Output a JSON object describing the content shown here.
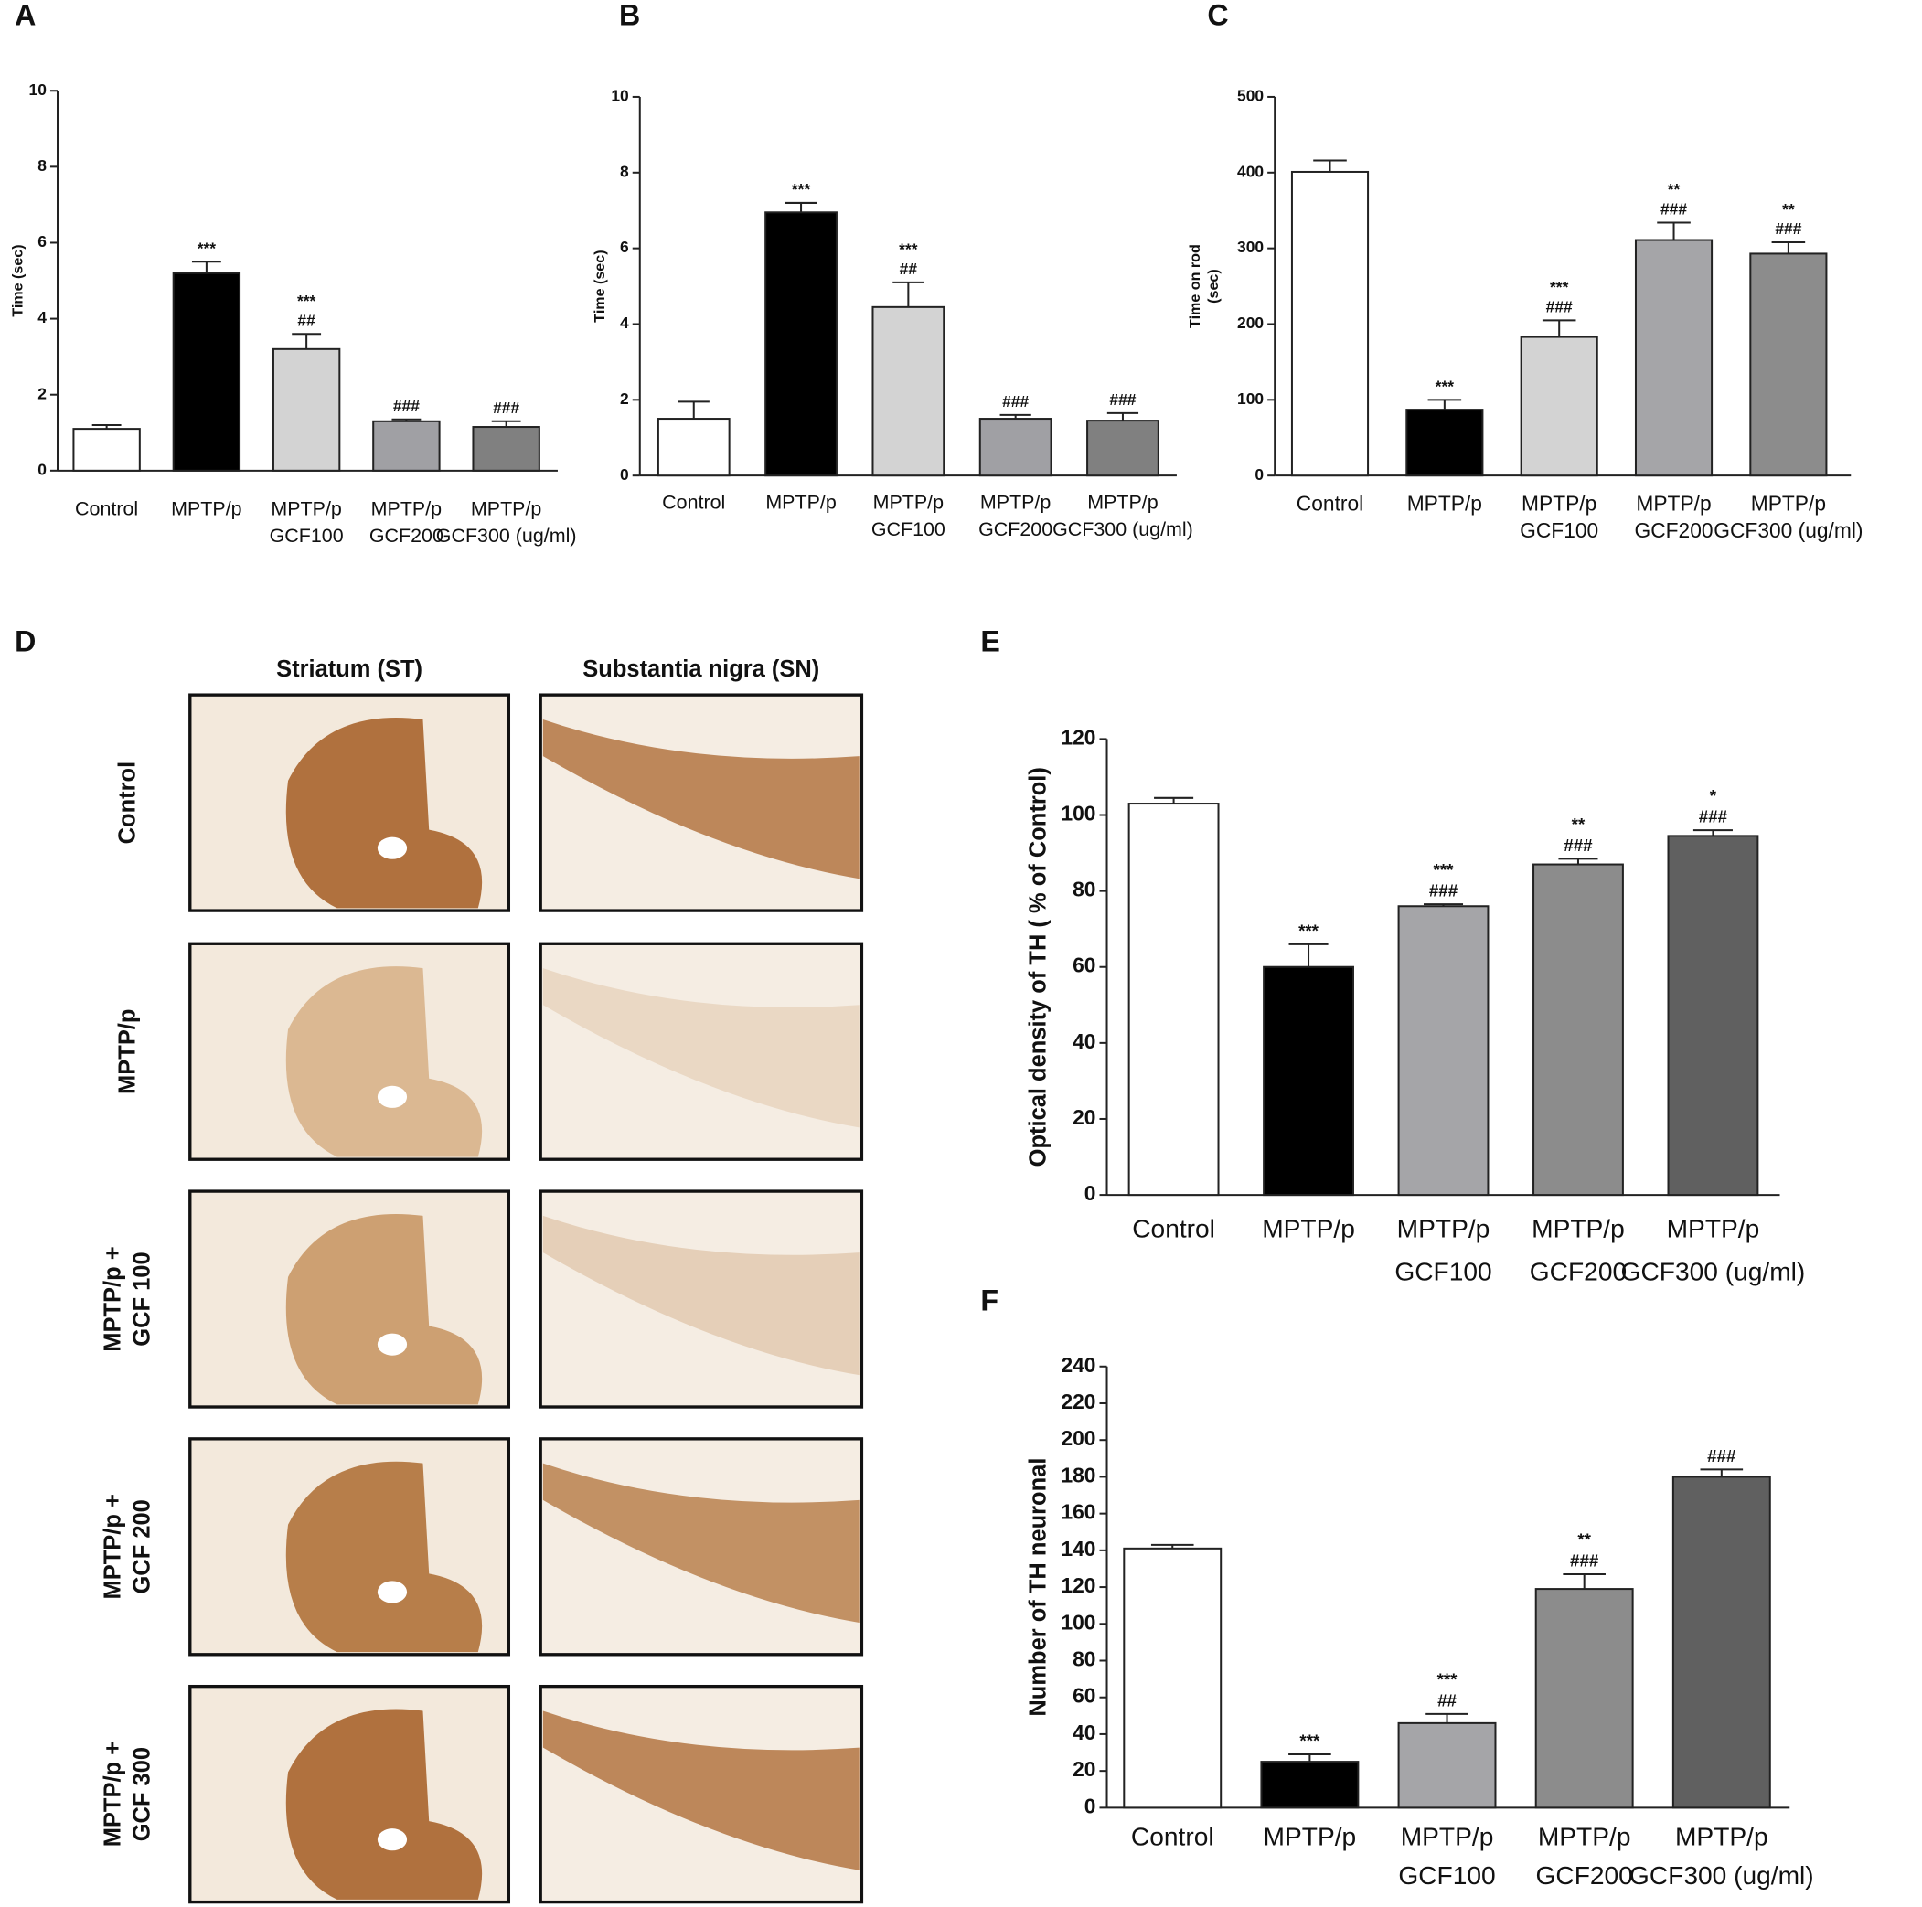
{
  "chart_data": [
    {
      "type": "bar",
      "label": "A",
      "ylabel": [
        "Time (sec)"
      ],
      "categories": [
        [
          "Control"
        ],
        [
          "MPTP/p"
        ],
        [
          "MPTP/p",
          "GCF100"
        ],
        [
          "MPTP/p",
          "GCF200"
        ],
        [
          "MPTP/p",
          "GCF300 (ug/ml)"
        ]
      ],
      "values": [
        1.1,
        5.2,
        3.2,
        1.3,
        1.15
      ],
      "errors": [
        0.1,
        0.3,
        0.4,
        0.05,
        0.15
      ],
      "colors": [
        "#ffffff",
        "#000000",
        "#d3d3d3",
        "#a0a0a4",
        "#808080"
      ],
      "annotations": [
        [],
        [
          "***"
        ],
        [
          "***",
          "##"
        ],
        [
          "###"
        ],
        [
          "###"
        ]
      ],
      "ylim": [
        0,
        10
      ],
      "yticks": [
        0,
        2,
        4,
        6,
        8,
        10
      ]
    },
    {
      "type": "bar",
      "label": "B",
      "ylabel": [
        "Time (sec)"
      ],
      "categories": [
        [
          "Control"
        ],
        [
          "MPTP/p"
        ],
        [
          "MPTP/p",
          "GCF100"
        ],
        [
          "MPTP/p",
          "GCF200"
        ],
        [
          "MPTP/p",
          "GCF300 (ug/ml)"
        ]
      ],
      "values": [
        1.5,
        6.95,
        4.45,
        1.5,
        1.45
      ],
      "errors": [
        0.45,
        0.25,
        0.65,
        0.1,
        0.2
      ],
      "colors": [
        "#ffffff",
        "#000000",
        "#d3d3d3",
        "#a0a0a4",
        "#808080"
      ],
      "annotations": [
        [],
        [
          "***"
        ],
        [
          "***",
          "##"
        ],
        [
          "###"
        ],
        [
          "###"
        ]
      ],
      "ylim": [
        0,
        10
      ],
      "yticks": [
        0,
        2,
        4,
        6,
        8,
        10
      ]
    },
    {
      "type": "bar",
      "label": "C",
      "ylabel": [
        "Time on rod",
        "(sec)"
      ],
      "categories": [
        [
          "Control"
        ],
        [
          "MPTP/p"
        ],
        [
          "MPTP/p",
          "GCF100"
        ],
        [
          "MPTP/p",
          "GCF200"
        ],
        [
          "MPTP/p",
          "GCF300 (ug/ml)"
        ]
      ],
      "values": [
        401,
        87,
        183,
        311,
        293
      ],
      "errors": [
        15,
        13,
        22,
        23,
        15
      ],
      "colors": [
        "#ffffff",
        "#000000",
        "#d3d3d3",
        "#a5a5a8",
        "#8c8c8c"
      ],
      "annotations": [
        [],
        [
          "***"
        ],
        [
          "***",
          "###"
        ],
        [
          "**",
          "###"
        ],
        [
          "**",
          "###"
        ]
      ],
      "ylim": [
        0,
        500
      ],
      "yticks": [
        0,
        100,
        200,
        300,
        400,
        500
      ]
    },
    {
      "type": "bar",
      "label": "E",
      "ylabel": [
        "Optical density of TH  ( % of Control)"
      ],
      "categories": [
        [
          "Control"
        ],
        [
          "MPTP/p"
        ],
        [
          "MPTP/p",
          "GCF100"
        ],
        [
          "MPTP/p",
          "GCF200"
        ],
        [
          "MPTP/p",
          "GCF300 (ug/ml)"
        ]
      ],
      "values": [
        103,
        60,
        76,
        87,
        94.5
      ],
      "errors": [
        1.5,
        6,
        0.5,
        1.5,
        1.5
      ],
      "colors": [
        "#ffffff",
        "#000000",
        "#a5a5a8",
        "#8c8c8c",
        "#606060"
      ],
      "annotations": [
        [],
        [
          "***"
        ],
        [
          "***",
          "###"
        ],
        [
          "**",
          "###"
        ],
        [
          "*",
          "###"
        ]
      ],
      "ylim": [
        0,
        120
      ],
      "yticks": [
        0,
        20,
        40,
        60,
        80,
        100,
        120
      ]
    },
    {
      "type": "bar",
      "label": "F",
      "ylabel": [
        "Number of TH neuronal"
      ],
      "categories": [
        [
          "Control"
        ],
        [
          "MPTP/p"
        ],
        [
          "MPTP/p",
          "GCF100"
        ],
        [
          "MPTP/p",
          "GCF200"
        ],
        [
          "MPTP/p",
          "GCF300 (ug/ml)"
        ]
      ],
      "values": [
        141,
        25,
        46,
        119,
        180
      ],
      "errors": [
        2,
        4,
        5,
        8,
        4
      ],
      "colors": [
        "#ffffff",
        "#000000",
        "#a5a5a8",
        "#8c8c8c",
        "#606060"
      ],
      "annotations": [
        [],
        [
          "***"
        ],
        [
          "***",
          "##"
        ],
        [
          "**",
          "###"
        ],
        [
          "###"
        ]
      ],
      "ylim": [
        0,
        240
      ],
      "yticks": [
        0,
        20,
        40,
        60,
        80,
        100,
        120,
        140,
        160,
        180,
        200,
        220,
        240
      ]
    }
  ],
  "panel_d": {
    "label": "D",
    "columns": [
      "Striatum (ST)",
      "Substantia nigra (SN)"
    ],
    "rows": [
      [
        "Control"
      ],
      [
        "MPTP/p"
      ],
      [
        "MPTP/p +",
        "GCF 100"
      ],
      [
        "MPTP/p +",
        "GCF 200"
      ],
      [
        "MPTP/p +",
        "GCF 300"
      ]
    ]
  }
}
